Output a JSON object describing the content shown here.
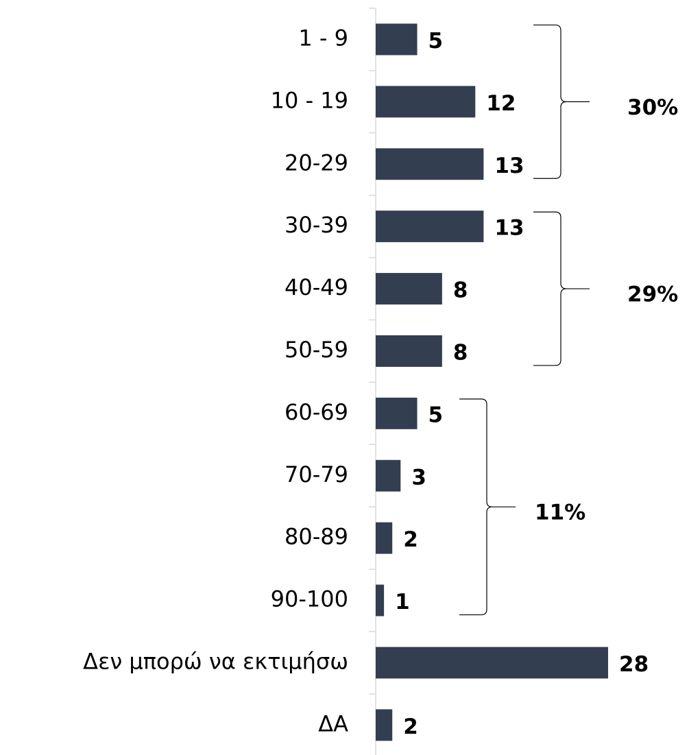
{
  "chart_data": {
    "type": "hbar",
    "categories": [
      "1 - 9",
      "10 - 19",
      "20-29",
      "30-39",
      "40-49",
      "50-59",
      "60-69",
      "70-79",
      "80-89",
      "90-100",
      "Δεν μπορώ να εκτιμήσω",
      "ΔΑ"
    ],
    "values": [
      5,
      12,
      13,
      13,
      8,
      8,
      5,
      3,
      2,
      1,
      28,
      2
    ],
    "color": "#333f50",
    "xlim": [
      0,
      28
    ],
    "annotations": [
      "30%",
      "29%",
      "11%"
    ]
  }
}
